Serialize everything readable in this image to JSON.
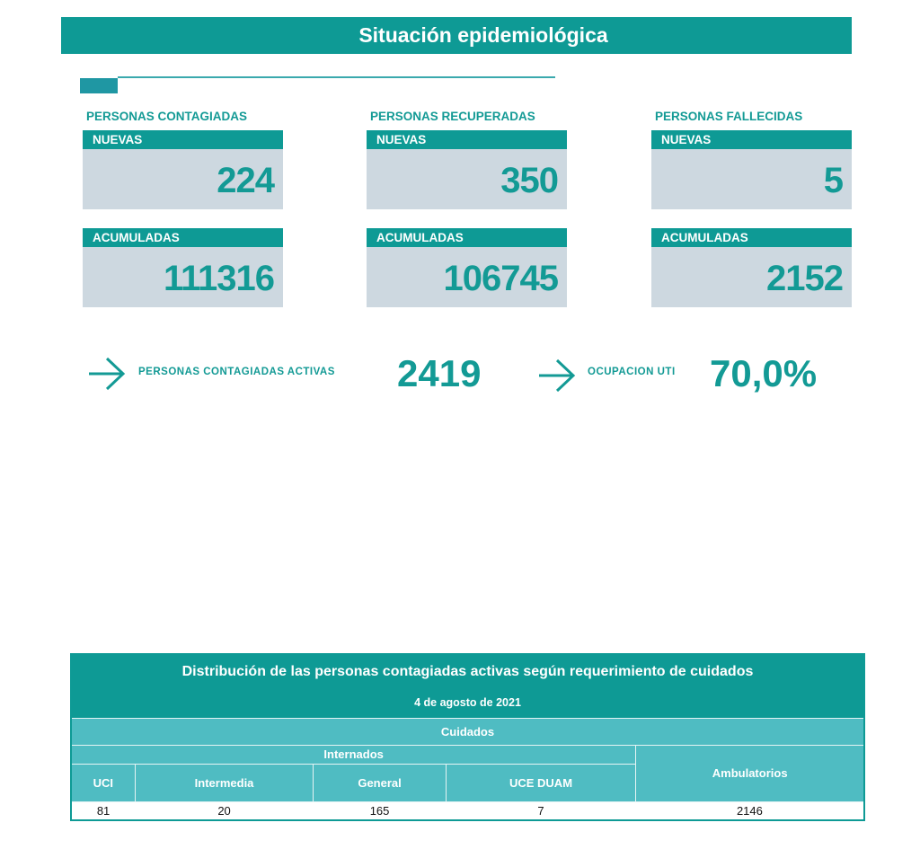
{
  "header": {
    "title": "Situación epidemiológica"
  },
  "cards": [
    {
      "title": "PERSONAS CONTAGIADAS",
      "new_label": "NUEVAS",
      "new_value": "224",
      "acc_label": "ACUMULADAS",
      "acc_value": "111316"
    },
    {
      "title": "PERSONAS RECUPERADAS",
      "new_label": "NUEVAS",
      "new_value": "350",
      "acc_label": "ACUMULADAS",
      "acc_value": "106745"
    },
    {
      "title": "PERSONAS FALLECIDAS",
      "new_label": "NUEVAS",
      "new_value": "5",
      "acc_label": "ACUMULADAS",
      "acc_value": "2152"
    }
  ],
  "highlights": [
    {
      "label": "PERSONAS CONTAGIADAS ACTIVAS",
      "value": "2419"
    },
    {
      "label": "OCUPACION UTI",
      "value": "70,0%"
    }
  ],
  "table": {
    "title": "Distribución de las personas contagiadas activas según requerimiento de cuidados",
    "date": "4 de agosto de 2021",
    "group": "Cuidados",
    "subgroup": "Internados",
    "columns": [
      "UCI",
      "Intermedia",
      "General",
      "UCE DUAM",
      "Ambulatorios"
    ],
    "values": [
      "81",
      "20",
      "165",
      "7",
      "2146"
    ]
  }
}
